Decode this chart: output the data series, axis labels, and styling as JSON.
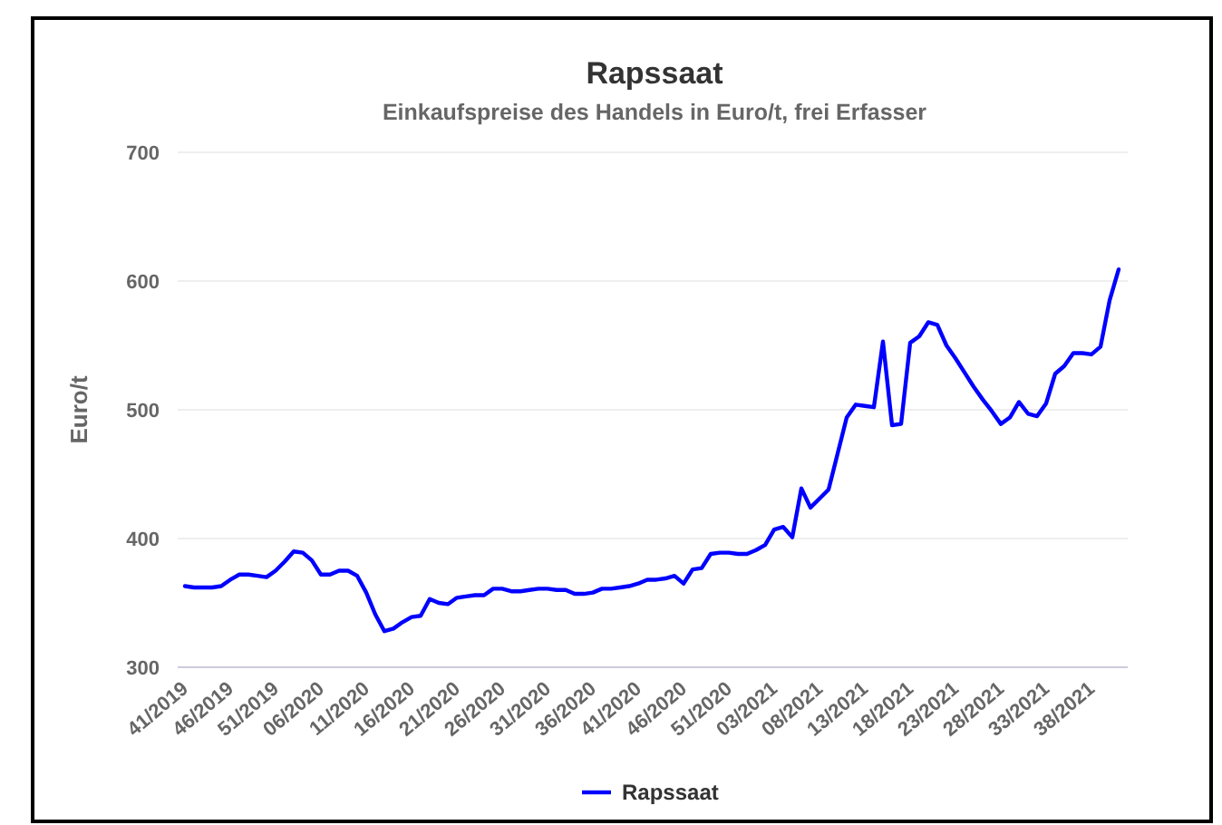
{
  "chart_data": {
    "type": "line",
    "title": "Rapssaat",
    "subtitle": "Einkaufspreise des Handels in Euro/t, frei Erfasser",
    "ylabel": "Euro/t",
    "categories": [
      "41/2019",
      null,
      null,
      null,
      null,
      "46/2019",
      null,
      null,
      null,
      null,
      "51/2019",
      null,
      null,
      null,
      null,
      "06/2020",
      null,
      null,
      null,
      null,
      "11/2020",
      null,
      null,
      null,
      null,
      "16/2020",
      null,
      null,
      null,
      null,
      "21/2020",
      null,
      null,
      null,
      null,
      "26/2020",
      null,
      null,
      null,
      null,
      "31/2020",
      null,
      null,
      null,
      null,
      "36/2020",
      null,
      null,
      null,
      null,
      "41/2020",
      null,
      null,
      null,
      null,
      "46/2020",
      null,
      null,
      null,
      null,
      "51/2020",
      null,
      null,
      null,
      null,
      "03/2021",
      null,
      null,
      null,
      null,
      "08/2021",
      null,
      null,
      null,
      null,
      "13/2021",
      null,
      null,
      null,
      null,
      "18/2021",
      null,
      null,
      null,
      null,
      "23/2021",
      null,
      null,
      null,
      null,
      "28/2021",
      null,
      null,
      null,
      null,
      "33/2021",
      null,
      null,
      null,
      null,
      "38/2021",
      null,
      null,
      null
    ],
    "series": [
      {
        "name": "Rapssaat",
        "color": "#0000ff",
        "values": [
          363,
          362,
          362,
          362,
          363,
          368,
          372,
          372,
          371,
          370,
          375,
          382,
          390,
          389,
          383,
          372,
          372,
          375,
          375,
          371,
          358,
          341,
          328,
          330,
          335,
          339,
          340,
          353,
          350,
          349,
          354,
          355,
          356,
          356,
          361,
          361,
          359,
          359,
          360,
          361,
          361,
          360,
          360,
          357,
          357,
          358,
          361,
          361,
          362,
          363,
          365,
          368,
          368,
          369,
          371,
          365,
          376,
          377,
          388,
          389,
          389,
          388,
          388,
          391,
          395,
          407,
          409,
          401,
          439,
          424,
          431,
          438,
          466,
          494,
          504,
          503,
          502,
          553,
          488,
          489,
          552,
          557,
          568,
          566,
          550,
          540,
          529,
          518,
          508,
          499,
          489,
          494,
          506,
          497,
          495,
          505,
          528,
          534,
          544,
          544,
          543,
          549,
          585,
          609
        ]
      }
    ],
    "ylim": [
      300,
      700
    ],
    "yticks": [
      300,
      400,
      500,
      600,
      700
    ],
    "grid": "y",
    "legend": "bottom",
    "marker": "none",
    "line_style": "solid"
  }
}
